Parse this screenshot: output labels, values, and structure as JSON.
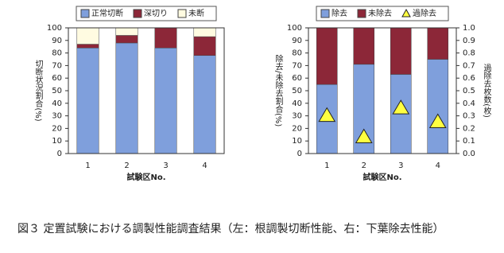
{
  "chart_data": [
    {
      "type": "bar",
      "stacked": true,
      "legend": "top",
      "y_label": "切断状況割合(%)",
      "x_label": "試験区No.",
      "categories": [
        "1",
        "2",
        "3",
        "4"
      ],
      "series": [
        {
          "name": "正常切断",
          "color": "#7f9fdc",
          "values": [
            84,
            88,
            84,
            78
          ]
        },
        {
          "name": "深切り",
          "color": "#8c2738",
          "values": [
            3,
            6,
            16,
            15
          ]
        },
        {
          "name": "未断",
          "color": "#fffbe1",
          "values": [
            13,
            6,
            0,
            7
          ]
        }
      ],
      "ylim": [
        0,
        100
      ],
      "yticks": [
        0,
        10,
        20,
        30,
        40,
        50,
        60,
        70,
        80,
        90,
        100
      ]
    },
    {
      "type": "bar",
      "stacked": true,
      "legend": "top",
      "y_label": "除去/未除去割合(%)",
      "y2_label": "過除去枚数(枚)",
      "x_label": "試験区No.",
      "categories": [
        "1",
        "2",
        "3",
        "4"
      ],
      "series": [
        {
          "name": "除去",
          "color": "#7f9fdc",
          "values": [
            55,
            71,
            63,
            75
          ]
        },
        {
          "name": "未除去",
          "color": "#8c2738",
          "values": [
            45,
            29,
            37,
            25
          ]
        },
        {
          "name": "過除去",
          "color": "#ffff40",
          "type": "scatter",
          "marker": "triangle",
          "axis": "y2",
          "values": [
            0.3,
            0.13,
            0.36,
            0.25
          ]
        }
      ],
      "ylim": [
        0,
        100
      ],
      "yticks": [
        0,
        10,
        20,
        30,
        40,
        50,
        60,
        70,
        80,
        90,
        100
      ],
      "y2lim": [
        0,
        1
      ],
      "y2ticks": [
        {
          "value": 0,
          "label": "0.0"
        },
        0.1,
        0.2,
        0.3,
        0.4,
        0.5,
        0.6,
        0.7,
        0.8,
        0.9,
        {
          "value": 1,
          "label": "1.0"
        }
      ]
    }
  ],
  "caption": "図３ 定置試験における調製性能調査結果（左：根調製切断性能、右：下葉除去性能）"
}
